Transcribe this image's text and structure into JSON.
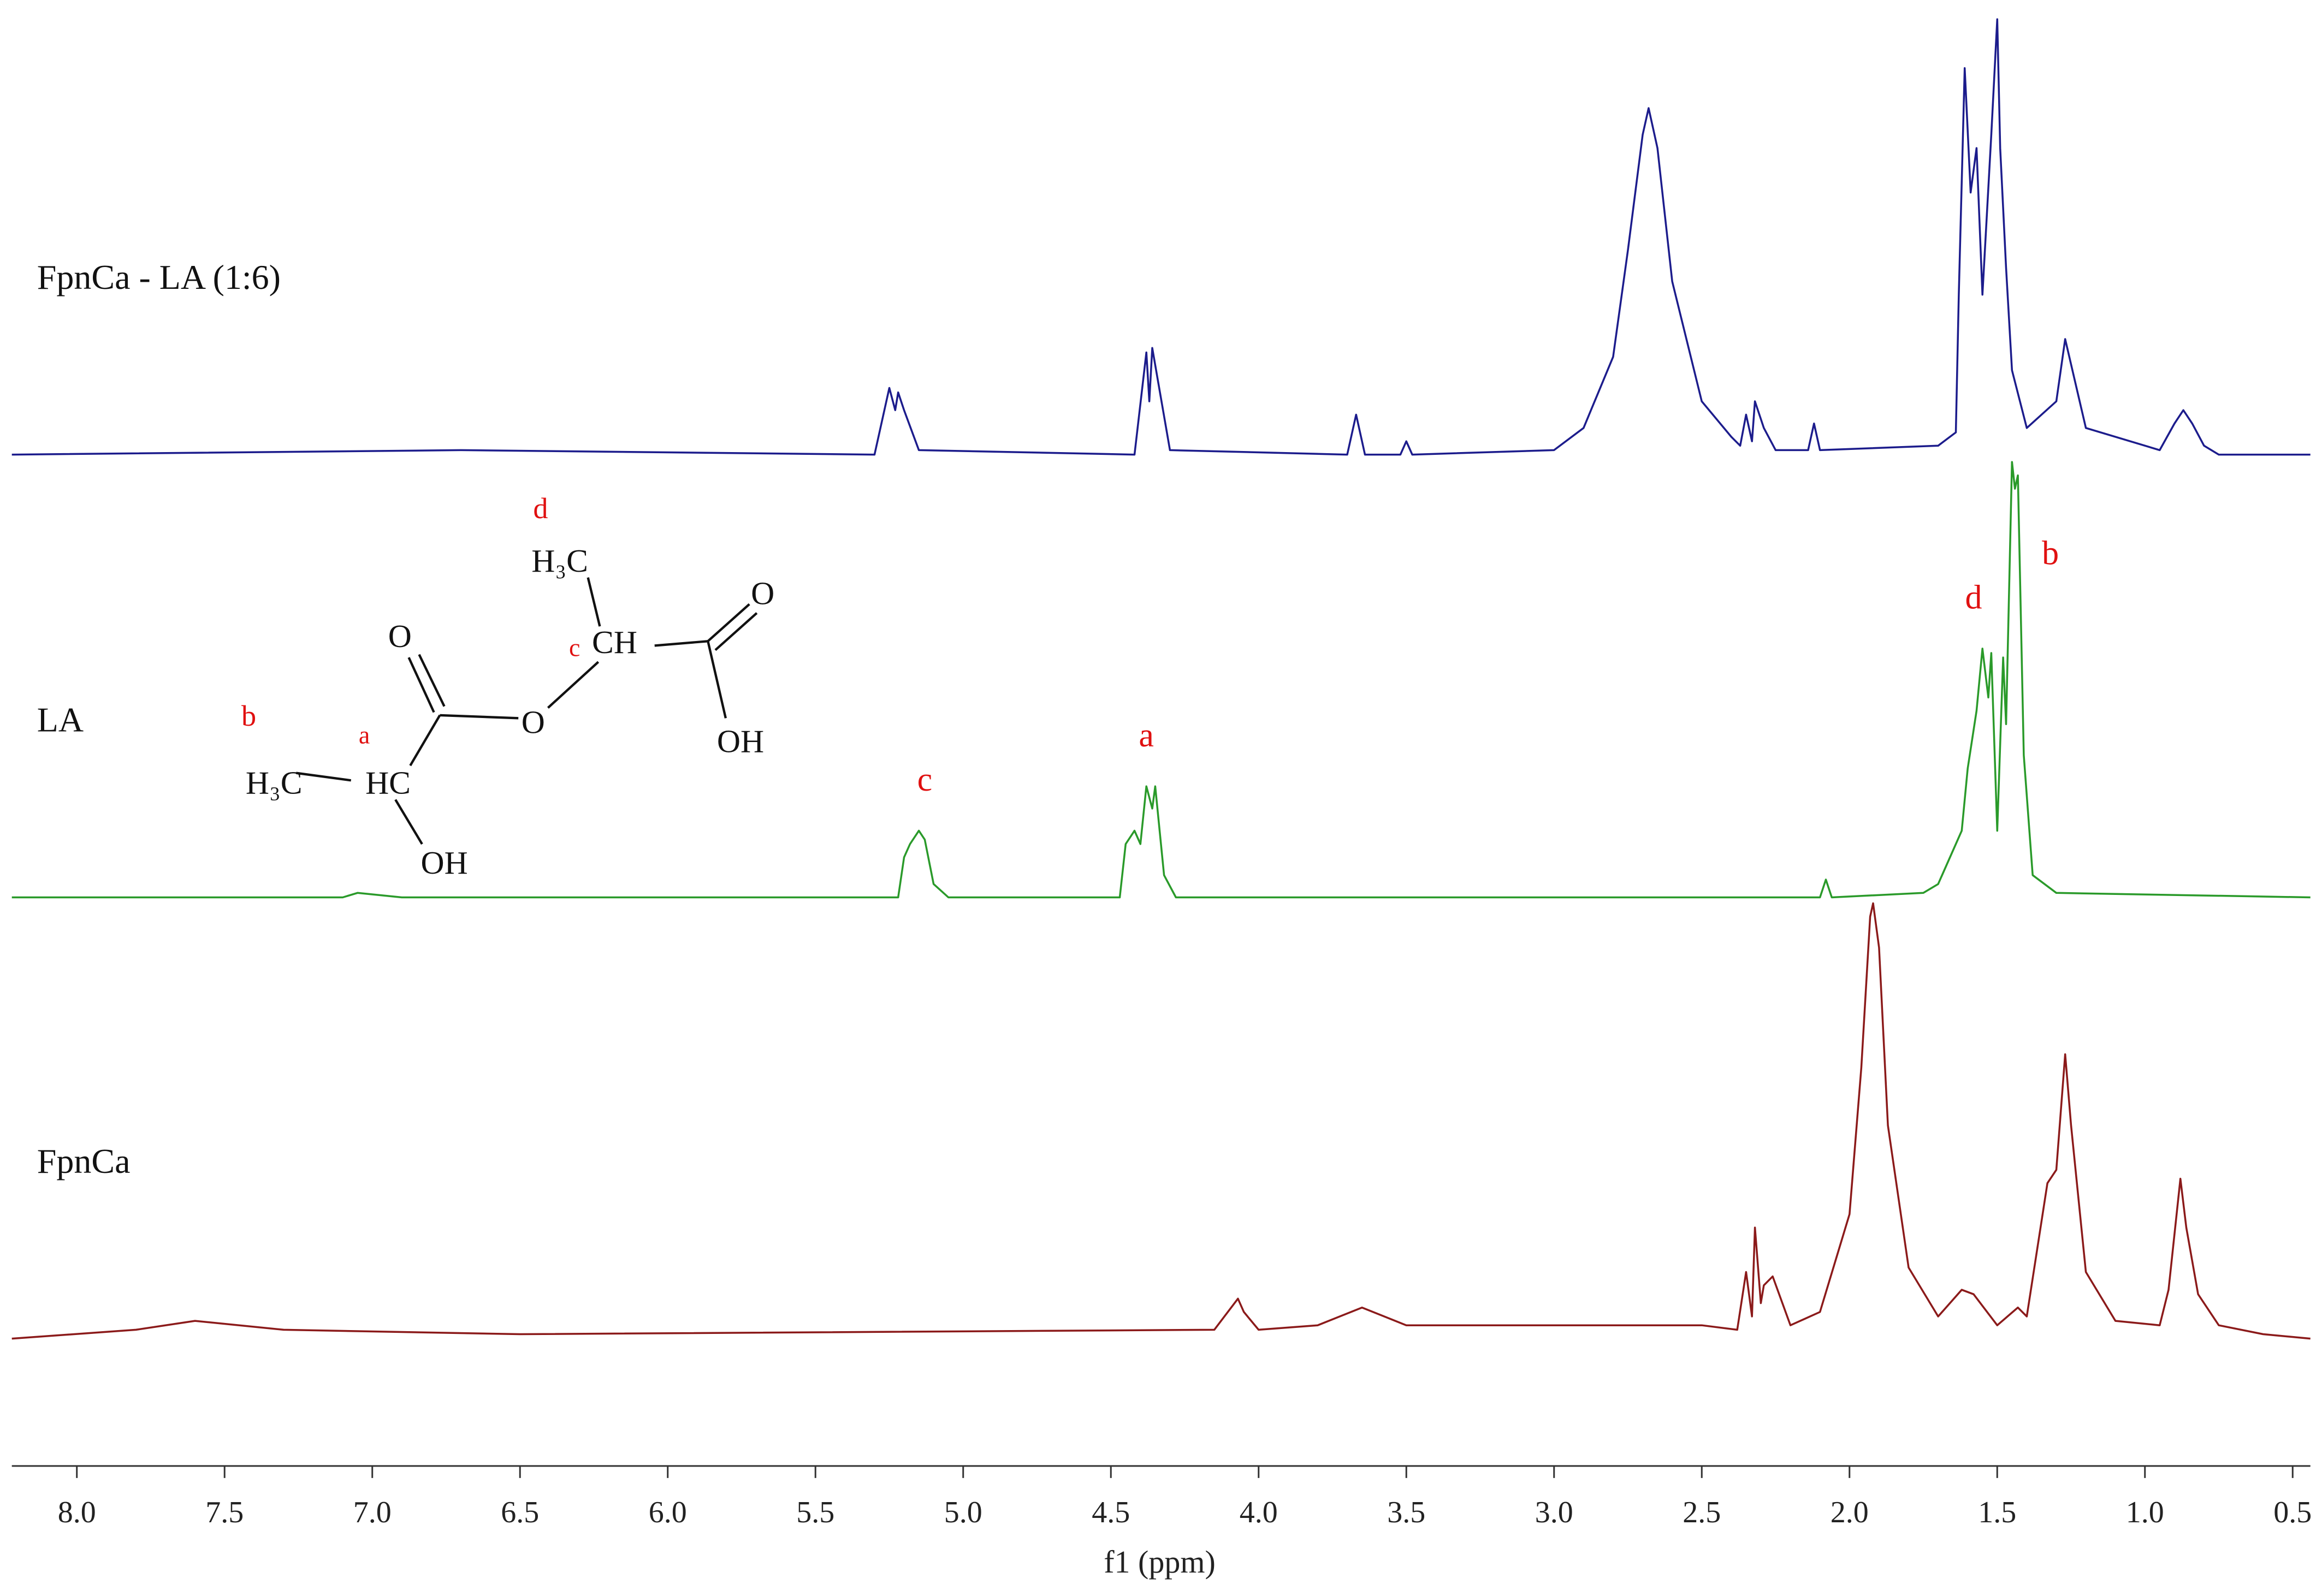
{
  "chart_data": {
    "type": "line",
    "xlabel": "f1 (ppm)",
    "xlim": [
      8.22,
      0.44
    ],
    "xticks": [
      {
        "value": 8,
        "label": "8.0"
      },
      7.5,
      {
        "value": 7,
        "label": "7.0"
      },
      6.5,
      {
        "value": 6,
        "label": "6.0"
      },
      5.5,
      {
        "value": 5,
        "label": "5.0"
      },
      4.5,
      {
        "value": 4,
        "label": "4.0"
      },
      3.5,
      {
        "value": 3,
        "label": "3.0"
      },
      2.5,
      {
        "value": 2,
        "label": "2.0"
      },
      1.5,
      {
        "value": 1,
        "label": "1.0"
      },
      0.5
    ],
    "ylim": [
      0,
      100
    ],
    "series": [
      {
        "name": "FpnCa - LA (1:6)",
        "color": "#1c1c8c",
        "x": [
          8.22,
          6.7,
          5.3,
          5.25,
          5.23,
          5.22,
          5.2,
          5.15,
          4.42,
          4.38,
          4.37,
          4.36,
          4.3,
          3.7,
          3.67,
          3.64,
          3.52,
          3.5,
          3.48,
          3.0,
          2.9,
          2.8,
          2.75,
          2.7,
          2.68,
          2.65,
          2.6,
          2.5,
          2.4,
          2.37,
          2.35,
          2.33,
          2.32,
          2.29,
          2.25,
          2.14,
          2.12,
          2.1,
          1.7,
          1.64,
          1.63,
          1.61,
          1.59,
          1.57,
          1.55,
          1.52,
          1.5,
          1.49,
          1.47,
          1.45,
          1.4,
          1.3,
          1.27,
          1.2,
          0.95,
          0.9,
          0.87,
          0.84,
          0.8,
          0.75,
          0.44
        ],
        "values": [
          0,
          1,
          0,
          15,
          10,
          14,
          10,
          1,
          0,
          23,
          12,
          24,
          1,
          0,
          9,
          0,
          0,
          3,
          0,
          1,
          6,
          22,
          46,
          72,
          78,
          69,
          39,
          12,
          4,
          2,
          9,
          3,
          12,
          6,
          1,
          1,
          7,
          1,
          2,
          5,
          36,
          87,
          59,
          69,
          36,
          72,
          98,
          69,
          42,
          19,
          6,
          12,
          26,
          6,
          1,
          7,
          10,
          7,
          2,
          0,
          0
        ]
      },
      {
        "name": "LA",
        "color": "#2a9a2a",
        "x": [
          8.22,
          7.1,
          7.05,
          6.9,
          5.22,
          5.2,
          5.18,
          5.15,
          5.13,
          5.1,
          5.05,
          4.47,
          4.45,
          4.42,
          4.4,
          4.38,
          4.36,
          4.35,
          4.32,
          4.28,
          2.1,
          2.08,
          2.06,
          1.75,
          1.7,
          1.62,
          1.6,
          1.57,
          1.55,
          1.53,
          1.52,
          1.5,
          1.48,
          1.47,
          1.45,
          1.44,
          1.43,
          1.41,
          1.38,
          1.3,
          0.44
        ],
        "values": [
          0,
          0,
          1,
          0,
          0,
          9,
          12,
          15,
          13,
          3,
          0,
          0,
          12,
          15,
          12,
          25,
          20,
          25,
          5,
          0,
          0,
          4,
          0,
          1,
          3,
          15,
          29,
          42,
          56,
          45,
          55,
          15,
          54,
          39,
          98,
          92,
          95,
          32,
          5,
          1,
          0
        ]
      },
      {
        "name": "FpnCa",
        "color": "#8b1a1a",
        "x": [
          8.22,
          7.8,
          7.6,
          7.3,
          6.5,
          4.15,
          4.07,
          4.05,
          4.0,
          3.8,
          3.65,
          3.5,
          2.5,
          2.38,
          2.35,
          2.33,
          2.32,
          2.3,
          2.29,
          2.26,
          2.2,
          2.1,
          2.0,
          1.96,
          1.93,
          1.92,
          1.9,
          1.87,
          1.8,
          1.7,
          1.62,
          1.58,
          1.5,
          1.43,
          1.4,
          1.33,
          1.3,
          1.27,
          1.25,
          1.2,
          1.1,
          0.95,
          0.92,
          0.88,
          0.86,
          0.82,
          0.75,
          0.6,
          0.44
        ],
        "values": [
          0,
          2,
          4,
          2,
          1,
          2,
          9,
          6,
          2,
          3,
          7,
          3,
          3,
          2,
          15,
          5,
          25,
          8,
          12,
          14,
          3,
          6,
          28,
          61,
          95,
          98,
          88,
          48,
          16,
          5,
          11,
          10,
          3,
          7,
          5,
          35,
          38,
          64,
          48,
          15,
          4,
          3,
          11,
          36,
          25,
          10,
          3,
          1,
          0
        ]
      }
    ],
    "annotations": [
      {
        "text": "c",
        "x": 5.13,
        "y": 24
      },
      {
        "text": "a",
        "x": 4.38,
        "y": 34
      },
      {
        "text": "d",
        "x": 1.58,
        "y": 65
      },
      {
        "text": "b",
        "x": 1.32,
        "y": 75
      }
    ]
  },
  "structure": {
    "labels": [
      "d",
      "H₃C",
      "O",
      "c",
      "CH",
      "O",
      "O",
      "OH",
      "b",
      "a",
      "H₃C",
      "HC",
      "OH"
    ]
  }
}
